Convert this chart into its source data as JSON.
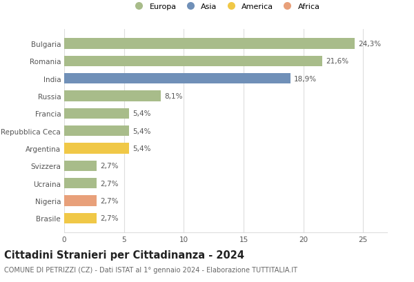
{
  "categories": [
    "Brasile",
    "Nigeria",
    "Ucraina",
    "Svizzera",
    "Argentina",
    "Repubblica Ceca",
    "Francia",
    "Russia",
    "India",
    "Romania",
    "Bulgaria"
  ],
  "values": [
    2.7,
    2.7,
    2.7,
    2.7,
    5.4,
    5.4,
    5.4,
    8.1,
    18.9,
    21.6,
    24.3
  ],
  "colors": [
    "#f0c847",
    "#e8a07a",
    "#a8bc8a",
    "#a8bc8a",
    "#f0c847",
    "#a8bc8a",
    "#a8bc8a",
    "#a8bc8a",
    "#7090b8",
    "#a8bc8a",
    "#a8bc8a"
  ],
  "legend": [
    {
      "label": "Europa",
      "color": "#a8bc8a"
    },
    {
      "label": "Asia",
      "color": "#7090b8"
    },
    {
      "label": "America",
      "color": "#f0c847"
    },
    {
      "label": "Africa",
      "color": "#e8a07a"
    }
  ],
  "title": "Cittadini Stranieri per Cittadinanza - 2024",
  "subtitle": "COMUNE DI PETRIZZI (CZ) - Dati ISTAT al 1° gennaio 2024 - Elaborazione TUTTITALIA.IT",
  "xlim": [
    0,
    27
  ],
  "xticks": [
    0,
    5,
    10,
    15,
    20,
    25
  ],
  "background_color": "#ffffff",
  "grid_color": "#dddddd",
  "bar_height": 0.6,
  "value_fontsize": 7.5,
  "tick_fontsize": 7.5,
  "legend_fontsize": 8.0,
  "title_fontsize": 10.5,
  "subtitle_fontsize": 7.0
}
